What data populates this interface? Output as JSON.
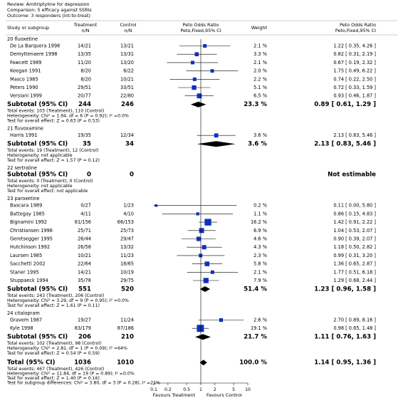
{
  "chart_data": {
    "type": "forest",
    "header": {
      "review": "Review:  Amitriptyline for depression",
      "comparison": "Comparison:  5 efficacy against SSRIs",
      "outcome": "Outcome:  3 responders (int-to-treat)"
    },
    "columns": {
      "study": "Study or subgroup",
      "treatment": [
        "Treatment",
        "n/N"
      ],
      "control": [
        "Control",
        "n/N"
      ],
      "effect": [
        "Peto Odds Ratio",
        "Peto,Fixed,95% CI"
      ],
      "weight": "Weight",
      "effect_text": [
        "Peto Odds Ratio",
        "Peto,Fixed,95% CI"
      ]
    },
    "log": true,
    "xlim": [
      0.1,
      10
    ],
    "xticks": [
      0.1,
      0.2,
      0.5,
      1,
      2,
      5,
      10
    ],
    "square_color": "#1030c0",
    "diamond_color": "#000000",
    "favours": [
      "Favours Treatment",
      "Favours Control"
    ],
    "groups": [
      {
        "name": "20 fluoxetine",
        "studies": [
          {
            "name": "De La Barquera 1998",
            "treatment": "14/21",
            "control": "13/21",
            "weight": 2.1,
            "weight_label": "2.1 %",
            "or": 1.22,
            "lo": 0.35,
            "hi": 4.26,
            "ci_label": "1.22 [ 0.35, 4.26 ]"
          },
          {
            "name": "Demyttenaere 1998",
            "treatment": "13/35",
            "control": "13/31",
            "weight": 3.3,
            "weight_label": "3.3 %",
            "or": 0.82,
            "lo": 0.31,
            "hi": 2.19,
            "ci_label": "0.82 [ 0.31, 2.19 ]"
          },
          {
            "name": "Fawcett 1989",
            "treatment": "11/20",
            "control": "13/20",
            "weight": 2.1,
            "weight_label": "2.1 %",
            "or": 0.67,
            "lo": 0.19,
            "hi": 2.32,
            "ci_label": "0.67 [ 0.19, 2.32 ]"
          },
          {
            "name": "Keegan 1991",
            "treatment": "8/20",
            "control": "6/22",
            "weight": 2.0,
            "weight_label": "2.0 %",
            "or": 1.75,
            "lo": 0.49,
            "hi": 6.22,
            "ci_label": "1.75 [ 0.49, 6.22 ]"
          },
          {
            "name": "Masco 1985",
            "treatment": "8/20",
            "control": "10/21",
            "weight": 2.2,
            "weight_label": "2.2 %",
            "or": 0.74,
            "lo": 0.22,
            "hi": 2.5,
            "ci_label": "0.74 [ 0.22, 2.50 ]"
          },
          {
            "name": "Peters 1990",
            "treatment": "29/51",
            "control": "33/51",
            "weight": 5.1,
            "weight_label": "5.1 %",
            "or": 0.72,
            "lo": 0.33,
            "hi": 1.59,
            "ci_label": "0.72 [ 0.33, 1.59 ]"
          },
          {
            "name": "Versiani 1999",
            "treatment": "20/77",
            "control": "22/80",
            "weight": 6.5,
            "weight_label": "6.5 %",
            "or": 0.93,
            "lo": 0.46,
            "hi": 1.87,
            "ci_label": "0.93 [ 0.46, 1.87 ]"
          }
        ],
        "subtotal": {
          "label": "Subtotal (95% CI)",
          "treatment": 244,
          "control": 246,
          "weight": 23.3,
          "weight_label": "23.3 %",
          "or": 0.89,
          "lo": 0.61,
          "hi": 1.29,
          "ci_label": "0.89 [ 0.61, 1.29 ]"
        },
        "notes": [
          "Total events: 103 (Treatment), 110 (Control)",
          "Heterogeneity: Chi² = 1.94, df = 6 (P = 0.92); I² =0.0%",
          "Test for overall effect: Z = 0.63 (P = 0.53)"
        ]
      },
      {
        "name": "21 fluvoxamine",
        "studies": [
          {
            "name": "Harris 1991",
            "treatment": "19/35",
            "control": "12/34",
            "weight": 3.6,
            "weight_label": "3.6 %",
            "or": 2.13,
            "lo": 0.83,
            "hi": 5.46,
            "ci_label": "2.13 [ 0.83, 5.46 ]"
          }
        ],
        "subtotal": {
          "label": "Subtotal (95% CI)",
          "treatment": 35,
          "control": 34,
          "weight": 3.6,
          "weight_label": "3.6 %",
          "or": 2.13,
          "lo": 0.83,
          "hi": 5.46,
          "ci_label": "2.13 [ 0.83, 5.46 ]"
        },
        "notes": [
          "Total events: 19 (Treatment), 12 (Control)",
          "Heterogeneity: not applicable",
          "Test for overall effect: Z = 1.57 (P = 0.12)"
        ]
      },
      {
        "name": "22 sertraline",
        "studies": [],
        "subtotal": {
          "label": "Subtotal (95% CI)",
          "treatment": 0,
          "control": 0,
          "ci_label": "Not estimable"
        },
        "notes": [
          "Total events: 0 (Treatment), 0 (Control)",
          "Heterogeneity: not applicable",
          "Test for overall effect: not applicable"
        ]
      },
      {
        "name": "23 paroxetine",
        "studies": [
          {
            "name": "Bascara 1989",
            "treatment": "0/27",
            "control": "1/23",
            "weight": 0.2,
            "weight_label": "0.2 %",
            "or": 0.11,
            "lo": 0.0,
            "hi": 5.8,
            "ci_label": "0.11 [ 0.00, 5.80 ]"
          },
          {
            "name": "Battegay 1985",
            "treatment": "4/11",
            "control": "4/10",
            "weight": 1.1,
            "weight_label": "1.1 %",
            "or": 0.86,
            "lo": 0.15,
            "hi": 4.83,
            "ci_label": "0.86 [ 0.15, 4.83 ]"
          },
          {
            "name": "Bignamini 1992",
            "treatment": "81/156",
            "control": "66/153",
            "weight": 16.2,
            "weight_label": "16.2 %",
            "or": 1.42,
            "lo": 0.91,
            "hi": 2.22,
            "ci_label": "1.42 [ 0.91, 2.22 ]"
          },
          {
            "name": "Christiansen 1996",
            "treatment": "25/71",
            "control": "25/73",
            "weight": 6.9,
            "weight_label": "6.9 %",
            "or": 1.04,
            "lo": 0.53,
            "hi": 2.07,
            "ci_label": "1.04 [ 0.53, 2.07 ]"
          },
          {
            "name": "Geretsegger 1995",
            "treatment": "26/44",
            "control": "29/47",
            "weight": 4.6,
            "weight_label": "4.6 %",
            "or": 0.9,
            "lo": 0.39,
            "hi": 2.07,
            "ci_label": "0.90 [ 0.39, 2.07 ]"
          },
          {
            "name": "Hutchinson 1992",
            "treatment": "26/58",
            "control": "13/32",
            "weight": 4.3,
            "weight_label": "4.3 %",
            "or": 1.18,
            "lo": 0.5,
            "hi": 2.82,
            "ci_label": "1.18 [ 0.50, 2.82 ]"
          },
          {
            "name": "Laursen 1985",
            "treatment": "10/21",
            "control": "11/23",
            "weight": 2.3,
            "weight_label": "2.3 %",
            "or": 0.99,
            "lo": 0.31,
            "hi": 3.2,
            "ci_label": "0.99 [ 0.31, 3.20 ]"
          },
          {
            "name": "Sacchetti 2002",
            "treatment": "22/64",
            "control": "18/65",
            "weight": 5.8,
            "weight_label": "5.8 %",
            "or": 1.36,
            "lo": 0.65,
            "hi": 2.87,
            "ci_label": "1.36 [ 0.65, 2.87 ]"
          },
          {
            "name": "Staner 1995",
            "treatment": "14/21",
            "control": "10/19",
            "weight": 2.1,
            "weight_label": "2.1 %",
            "or": 1.77,
            "lo": 0.51,
            "hi": 6.18,
            "ci_label": "1.77 [ 0.51, 6.18 ]"
          },
          {
            "name": "Stuppaeck 1994",
            "treatment": "35/78",
            "control": "29/75",
            "weight": 7.9,
            "weight_label": "7.9 %",
            "or": 1.29,
            "lo": 0.68,
            "hi": 2.44,
            "ci_label": "1.29 [ 0.68, 2.44 ]"
          }
        ],
        "subtotal": {
          "label": "Subtotal (95% CI)",
          "treatment": 551,
          "control": 520,
          "weight": 51.4,
          "weight_label": "51.4 %",
          "or": 1.23,
          "lo": 0.96,
          "hi": 1.58,
          "ci_label": "1.23 [ 0.96, 1.58 ]"
        },
        "notes": [
          "Total events: 243 (Treatment), 206 (Control)",
          "Heterogeneity: Chi² = 3.29, df = 9 (P = 0.95); I² =0.0%",
          "Test for overall effect: Z = 1.61 (P = 0.11)"
        ]
      },
      {
        "name": "24 citalopram",
        "studies": [
          {
            "name": "Gravem 1987",
            "treatment": "19/27",
            "control": "11/24",
            "weight": 2.6,
            "weight_label": "2.6 %",
            "or": 2.7,
            "lo": 0.89,
            "hi": 8.16,
            "ci_label": "2.70 [ 0.89, 8.16 ]"
          },
          {
            "name": "Kyle 1998",
            "treatment": "83/179",
            "control": "87/186",
            "weight": 19.1,
            "weight_label": "19.1 %",
            "or": 0.98,
            "lo": 0.65,
            "hi": 1.48,
            "ci_label": "0.98 [ 0.65, 1.48 ]"
          }
        ],
        "subtotal": {
          "label": "Subtotal (95% CI)",
          "treatment": 206,
          "control": 210,
          "weight": 21.7,
          "weight_label": "21.7 %",
          "or": 1.11,
          "lo": 0.76,
          "hi": 1.63,
          "ci_label": "1.11 [ 0.76, 1.63 ]"
        },
        "notes": [
          "Total events: 102 (Treatment), 98 (Control)",
          "Heterogeneity: Chi² = 2.81, df = 1 (P = 0.09); I² =64%",
          "Test for overall effect: Z = 0.54 (P = 0.59)"
        ]
      }
    ],
    "total": {
      "label": "Total (95% CI)",
      "treatment": 1036,
      "control": 1010,
      "weight": 100.0,
      "weight_label": "100.0 %",
      "or": 1.14,
      "lo": 0.95,
      "hi": 1.36,
      "ci_label": "1.14 [ 0.95, 1.36 ]"
    },
    "total_notes": [
      "Total events: 467 (Treatment), 426 (Control)",
      "Heterogeneity: Chi² = 11.84, df = 19 (P = 0.89); I² =0.0%",
      "Test for overall effect: Z = 1.40 (P = 0.16)",
      "Test for subgroup differences: Chi² = 3.80, df = 3 (P = 0.28), I² =21%"
    ]
  }
}
